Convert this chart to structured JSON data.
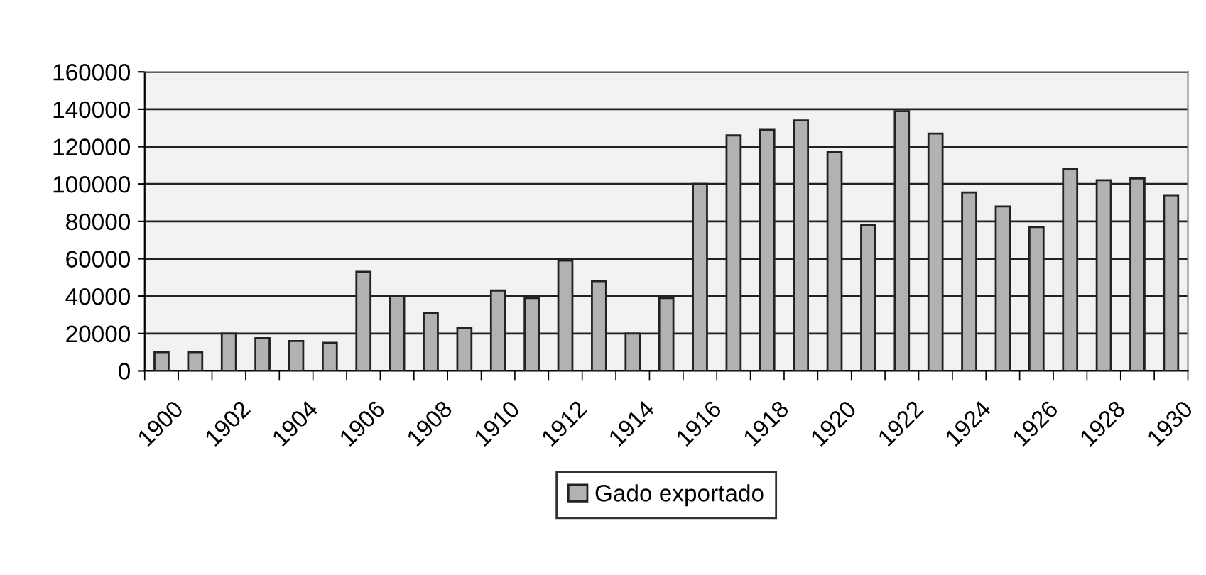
{
  "chart_data": {
    "type": "bar",
    "categories": [
      "1900",
      null,
      "1902",
      null,
      "1904",
      null,
      "1906",
      null,
      "1908",
      null,
      "1910",
      null,
      "1912",
      null,
      "1914",
      null,
      "1916",
      null,
      "1918",
      null,
      "1920",
      null,
      "1922",
      null,
      "1924",
      null,
      "1926",
      null,
      "1928",
      null,
      "1930"
    ],
    "series": [
      {
        "name": "Gado exportado",
        "color": "#b2b2b2",
        "values": [
          10000,
          10000,
          20000,
          17500,
          16000,
          15000,
          53000,
          40000,
          31000,
          23000,
          43000,
          39000,
          59000,
          48000,
          20000,
          39000,
          100000,
          126000,
          129000,
          134000,
          117000,
          78000,
          139000,
          127000,
          95500,
          88000,
          77000,
          108000,
          102000,
          103000,
          94000
        ]
      }
    ],
    "ylim": [
      0,
      160000
    ],
    "yticks": [
      0,
      20000,
      40000,
      60000,
      80000,
      100000,
      120000,
      140000,
      160000
    ],
    "grid": "y",
    "legend": "bottom"
  }
}
